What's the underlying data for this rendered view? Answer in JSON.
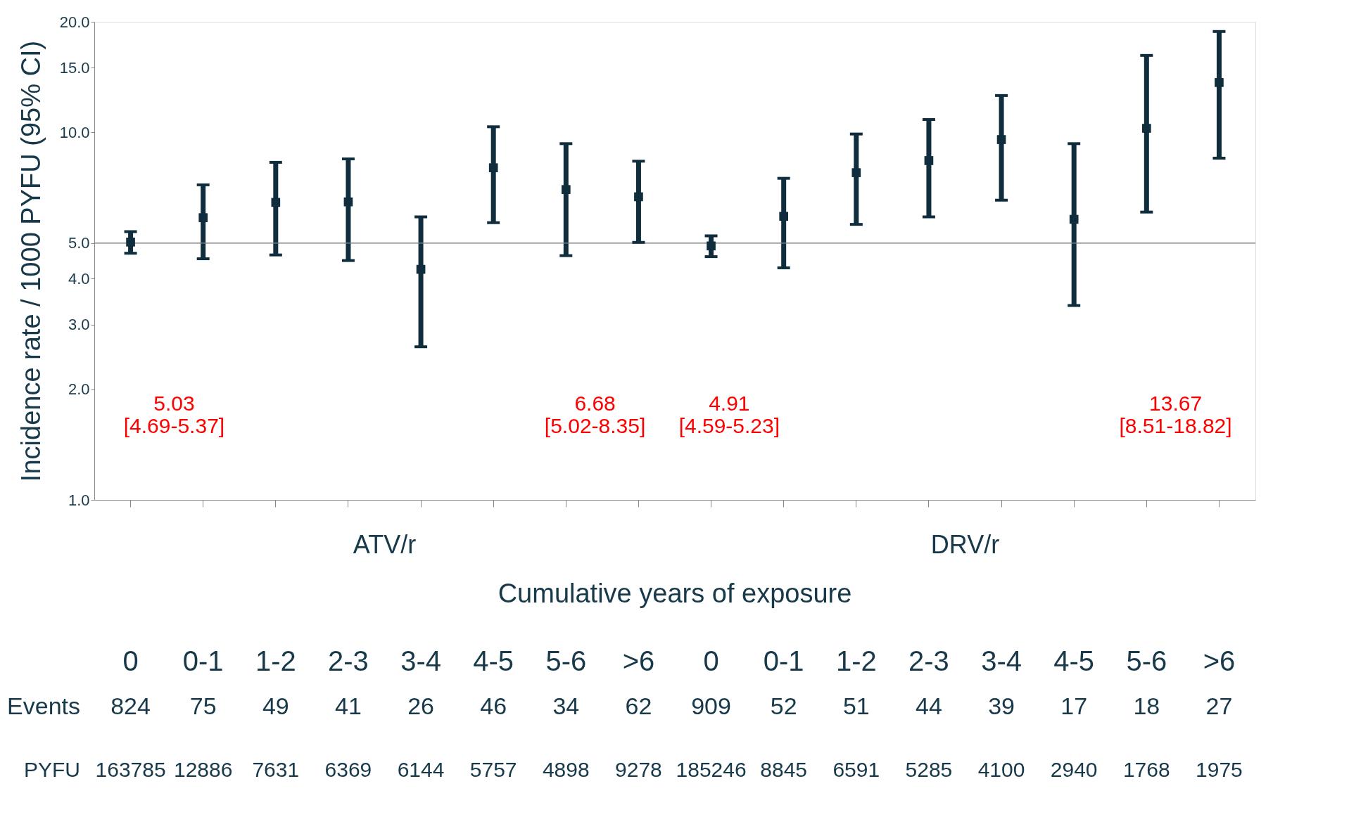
{
  "chart_data": {
    "type": "scatter",
    "xlabel": "Cumulative years of exposure",
    "ylabel": "Incidence rate / 1000 PYFU (95% CI)",
    "categories": [
      "0",
      "0-1",
      "1-2",
      "2-3",
      "3-4",
      "4-5",
      "5-6",
      ">6",
      "0",
      "0-1",
      "1-2",
      "2-3",
      "3-4",
      "4-5",
      "5-6",
      ">6"
    ],
    "values": [
      5.03,
      5.86,
      6.45,
      6.47,
      4.24,
      8.01,
      6.99,
      6.68,
      4.91,
      5.91,
      7.77,
      8.38,
      9.56,
      5.8,
      10.26,
      13.67
    ],
    "errors": [
      [
        4.69,
        5.37
      ],
      [
        4.53,
        7.2
      ],
      [
        4.64,
        8.29
      ],
      [
        4.48,
        8.47
      ],
      [
        2.61,
        5.89
      ],
      [
        5.68,
        10.36
      ],
      [
        4.62,
        9.32
      ],
      [
        5.02,
        8.35
      ],
      [
        4.59,
        5.23
      ],
      [
        4.28,
        7.5
      ],
      [
        5.62,
        9.9
      ],
      [
        5.89,
        10.84
      ],
      [
        6.54,
        12.6
      ],
      [
        3.38,
        9.32
      ],
      [
        6.07,
        16.2
      ],
      [
        8.51,
        18.82
      ]
    ],
    "color": "#0f2d3c",
    "marker": "square",
    "log": true,
    "grid": false,
    "ylim": [
      1,
      20
    ],
    "yticks": [
      {
        "value": 1,
        "label": "1.0"
      },
      {
        "value": 2,
        "label": "2.0"
      },
      {
        "value": 3,
        "label": "3.0"
      },
      {
        "value": 4,
        "label": "4.0"
      },
      {
        "value": 5,
        "label": "5.0"
      },
      {
        "value": 10,
        "label": "10.0"
      },
      {
        "value": 15,
        "label": "15.0"
      },
      {
        "value": 20,
        "label": "20.0"
      }
    ],
    "ref_lines": [
      {
        "axis": "y",
        "value": 5,
        "color": "#808080"
      }
    ],
    "annotations": [
      "ATV/r",
      "DRV/r",
      "5.03\n[4.69-5.37]",
      "6.68\n[5.02-8.35]",
      "4.91\n[4.59-5.23]",
      "13.67\n[8.51-18.82]",
      "Events",
      "824",
      "75",
      "49",
      "41",
      "26",
      "46",
      "34",
      "62",
      "909",
      "52",
      "51",
      "44",
      "39",
      "17",
      "18",
      "27",
      "PYFU",
      "163785",
      "12886",
      "7631",
      "6369",
      "6144",
      "5757",
      "4898",
      "9278",
      "185246",
      "8845",
      "6591",
      "5285",
      "4100",
      "2940",
      "1768",
      "1975"
    ]
  }
}
